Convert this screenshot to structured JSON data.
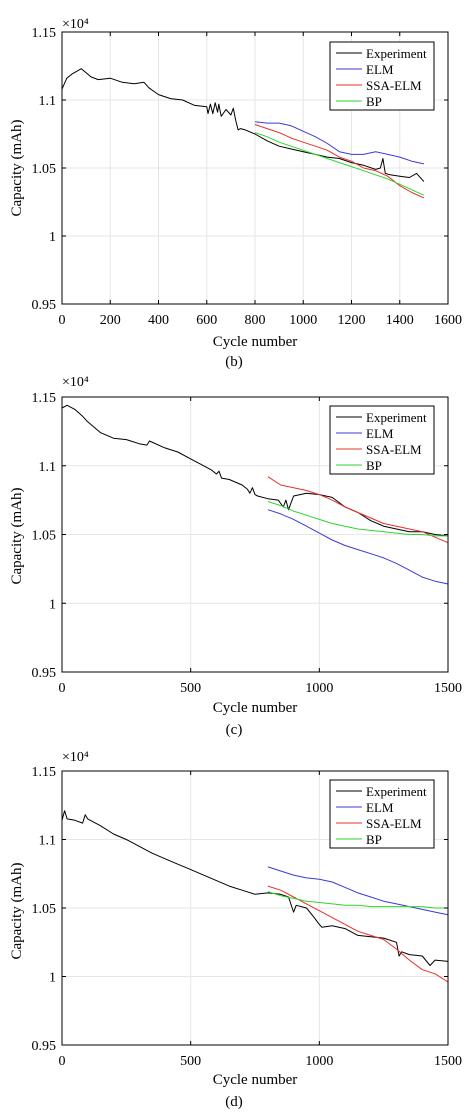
{
  "panels": [
    {
      "panel_label": "(b)",
      "exponent_label": "×10⁴",
      "xlabel": "Cycle number",
      "ylabel": "Capacity (mAh)",
      "xticks": [
        "0",
        "200",
        "400",
        "600",
        "800",
        "1000",
        "1200",
        "1400",
        "1600"
      ],
      "yticks": [
        "0.95",
        "1",
        "1.05",
        "1.1",
        "1.15"
      ]
    },
    {
      "panel_label": "(c)",
      "exponent_label": "×10⁴",
      "xlabel": "Cycle number",
      "ylabel": "Capacity (mAh)",
      "xticks": [
        "0",
        "500",
        "1000",
        "1500"
      ],
      "yticks": [
        "0.95",
        "1",
        "1.05",
        "1.1",
        "1.15"
      ]
    },
    {
      "panel_label": "(d)",
      "exponent_label": "×10⁴",
      "xlabel": "Cycle number",
      "ylabel": "Capacity (mAh)",
      "xticks": [
        "0",
        "500",
        "1000",
        "1500"
      ],
      "yticks": [
        "0.95",
        "1",
        "1.05",
        "1.1",
        "1.15"
      ]
    }
  ],
  "colors": {
    "Experiment": "#000000",
    "ELM": "#3b3bd6",
    "SSA-ELM": "#e8302a",
    "BP": "#2fd62f",
    "axis": "#000000"
  },
  "chart_data": [
    {
      "type": "line",
      "xlabel": "Cycle number",
      "ylabel": "Capacity (mAh)",
      "y_multiplier": "×10⁴",
      "xlim": [
        0,
        1600
      ],
      "ylim": [
        0.95,
        1.15
      ],
      "legend": "top-right",
      "series": [
        {
          "name": "Experiment",
          "x": [
            0,
            20,
            40,
            60,
            80,
            100,
            120,
            150,
            200,
            250,
            300,
            340,
            360,
            400,
            450,
            500,
            550,
            600,
            605,
            615,
            625,
            635,
            645,
            650,
            660,
            680,
            700,
            710,
            720,
            730,
            740,
            760,
            800,
            850,
            900,
            950,
            1000,
            1050,
            1100,
            1150,
            1200,
            1250,
            1300,
            1320,
            1330,
            1340,
            1360,
            1400,
            1440,
            1470,
            1500
          ],
          "y": [
            1.108,
            1.116,
            1.119,
            1.121,
            1.123,
            1.12,
            1.117,
            1.115,
            1.116,
            1.113,
            1.112,
            1.113,
            1.109,
            1.104,
            1.101,
            1.1,
            1.096,
            1.095,
            1.09,
            1.097,
            1.09,
            1.098,
            1.091,
            1.097,
            1.088,
            1.093,
            1.089,
            1.094,
            1.085,
            1.078,
            1.079,
            1.078,
            1.075,
            1.07,
            1.066,
            1.064,
            1.062,
            1.06,
            1.058,
            1.057,
            1.054,
            1.052,
            1.049,
            1.05,
            1.057,
            1.046,
            1.045,
            1.044,
            1.043,
            1.046,
            1.04
          ]
        },
        {
          "name": "ELM",
          "x": [
            800,
            850,
            900,
            950,
            1000,
            1050,
            1100,
            1150,
            1200,
            1250,
            1300,
            1350,
            1400,
            1450,
            1500
          ],
          "y": [
            1.084,
            1.083,
            1.083,
            1.081,
            1.077,
            1.073,
            1.068,
            1.062,
            1.06,
            1.06,
            1.062,
            1.06,
            1.058,
            1.055,
            1.053
          ]
        },
        {
          "name": "SSA-ELM",
          "x": [
            800,
            850,
            900,
            950,
            1000,
            1050,
            1100,
            1150,
            1200,
            1250,
            1300,
            1350,
            1400,
            1450,
            1500
          ],
          "y": [
            1.082,
            1.079,
            1.076,
            1.072,
            1.069,
            1.066,
            1.063,
            1.058,
            1.055,
            1.05,
            1.048,
            1.044,
            1.037,
            1.032,
            1.028
          ]
        },
        {
          "name": "BP",
          "x": [
            800,
            850,
            900,
            950,
            1000,
            1050,
            1100,
            1150,
            1200,
            1250,
            1300,
            1350,
            1400,
            1450,
            1500
          ],
          "y": [
            1.076,
            1.073,
            1.069,
            1.066,
            1.063,
            1.06,
            1.057,
            1.054,
            1.051,
            1.048,
            1.045,
            1.042,
            1.038,
            1.034,
            1.03
          ]
        }
      ]
    },
    {
      "type": "line",
      "xlabel": "Cycle number",
      "ylabel": "Capacity (mAh)",
      "y_multiplier": "×10⁴",
      "xlim": [
        0,
        1500
      ],
      "ylim": [
        0.95,
        1.15
      ],
      "legend": "top-right",
      "series": [
        {
          "name": "Experiment",
          "x": [
            0,
            20,
            50,
            80,
            100,
            150,
            200,
            250,
            300,
            330,
            340,
            400,
            450,
            500,
            550,
            580,
            600,
            610,
            620,
            650,
            700,
            720,
            730,
            740,
            750,
            760,
            800,
            840,
            860,
            870,
            880,
            890,
            900,
            950,
            1000,
            1050,
            1100,
            1150,
            1200,
            1250,
            1300,
            1350,
            1400,
            1450,
            1500
          ],
          "y": [
            1.142,
            1.144,
            1.141,
            1.136,
            1.132,
            1.124,
            1.12,
            1.119,
            1.116,
            1.115,
            1.118,
            1.113,
            1.11,
            1.105,
            1.1,
            1.097,
            1.094,
            1.096,
            1.091,
            1.09,
            1.086,
            1.083,
            1.08,
            1.084,
            1.079,
            1.078,
            1.076,
            1.075,
            1.07,
            1.075,
            1.068,
            1.073,
            1.078,
            1.08,
            1.079,
            1.077,
            1.07,
            1.066,
            1.06,
            1.056,
            1.054,
            1.052,
            1.052,
            1.05,
            1.049
          ]
        },
        {
          "name": "ELM",
          "x": [
            800,
            850,
            900,
            950,
            1000,
            1050,
            1100,
            1150,
            1200,
            1250,
            1300,
            1350,
            1400,
            1450,
            1500
          ],
          "y": [
            1.068,
            1.065,
            1.061,
            1.056,
            1.051,
            1.046,
            1.042,
            1.039,
            1.036,
            1.033,
            1.029,
            1.024,
            1.019,
            1.016,
            1.014
          ]
        },
        {
          "name": "SSA-ELM",
          "x": [
            800,
            850,
            900,
            950,
            1000,
            1050,
            1100,
            1150,
            1200,
            1250,
            1300,
            1350,
            1400,
            1450,
            1500
          ],
          "y": [
            1.092,
            1.086,
            1.084,
            1.082,
            1.079,
            1.075,
            1.07,
            1.066,
            1.062,
            1.058,
            1.056,
            1.054,
            1.052,
            1.048,
            1.044
          ]
        },
        {
          "name": "BP",
          "x": [
            800,
            850,
            900,
            950,
            1000,
            1050,
            1100,
            1150,
            1200,
            1250,
            1300,
            1350,
            1400,
            1450,
            1500
          ],
          "y": [
            1.074,
            1.071,
            1.067,
            1.064,
            1.061,
            1.058,
            1.056,
            1.054,
            1.053,
            1.052,
            1.051,
            1.05,
            1.05,
            1.049,
            1.049
          ]
        }
      ]
    },
    {
      "type": "line",
      "xlabel": "Cycle number",
      "ylabel": "Capacity (mAh)",
      "y_multiplier": "×10⁴",
      "xlim": [
        0,
        1500
      ],
      "ylim": [
        0.95,
        1.15
      ],
      "legend": "top-right",
      "series": [
        {
          "name": "Experiment",
          "x": [
            0,
            10,
            20,
            50,
            80,
            90,
            100,
            150,
            200,
            250,
            300,
            350,
            400,
            450,
            500,
            550,
            600,
            650,
            700,
            750,
            800,
            850,
            880,
            900,
            910,
            950,
            980,
            1000,
            1010,
            1050,
            1100,
            1150,
            1200,
            1250,
            1300,
            1310,
            1320,
            1350,
            1400,
            1430,
            1450,
            1500
          ],
          "y": [
            1.114,
            1.121,
            1.115,
            1.114,
            1.112,
            1.118,
            1.115,
            1.11,
            1.104,
            1.1,
            1.095,
            1.09,
            1.086,
            1.082,
            1.078,
            1.074,
            1.07,
            1.066,
            1.063,
            1.06,
            1.061,
            1.06,
            1.058,
            1.047,
            1.052,
            1.05,
            1.043,
            1.038,
            1.036,
            1.037,
            1.035,
            1.03,
            1.029,
            1.028,
            1.025,
            1.015,
            1.018,
            1.016,
            1.015,
            1.008,
            1.012,
            1.011
          ]
        },
        {
          "name": "ELM",
          "x": [
            800,
            850,
            900,
            950,
            1000,
            1050,
            1100,
            1150,
            1200,
            1250,
            1300,
            1350,
            1400,
            1450,
            1500
          ],
          "y": [
            1.08,
            1.077,
            1.074,
            1.072,
            1.071,
            1.069,
            1.065,
            1.061,
            1.058,
            1.055,
            1.053,
            1.051,
            1.049,
            1.047,
            1.045
          ]
        },
        {
          "name": "SSA-ELM",
          "x": [
            800,
            850,
            900,
            950,
            1000,
            1050,
            1100,
            1150,
            1200,
            1250,
            1300,
            1350,
            1400,
            1450,
            1500
          ],
          "y": [
            1.066,
            1.063,
            1.058,
            1.053,
            1.048,
            1.043,
            1.038,
            1.033,
            1.03,
            1.027,
            1.02,
            1.012,
            1.005,
            1.002,
            0.996
          ]
        },
        {
          "name": "BP",
          "x": [
            800,
            850,
            900,
            950,
            1000,
            1050,
            1100,
            1150,
            1200,
            1250,
            1300,
            1350,
            1400,
            1450,
            1500
          ],
          "y": [
            1.062,
            1.059,
            1.057,
            1.055,
            1.054,
            1.053,
            1.052,
            1.052,
            1.051,
            1.051,
            1.051,
            1.051,
            1.051,
            1.05,
            1.05
          ]
        }
      ]
    }
  ]
}
